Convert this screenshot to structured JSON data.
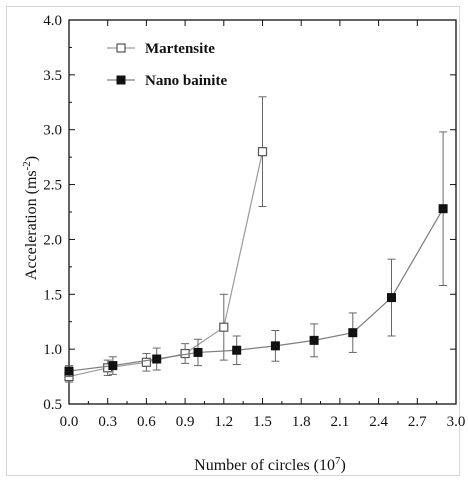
{
  "chart_data": {
    "type": "line",
    "title": "",
    "xlabel": "Number of circles (10",
    "xlabel_sup": "7",
    "xlabel_end": ")",
    "ylabel": "Acceleration (ms",
    "ylabel_sup": "-2",
    "ylabel_end": ")",
    "xlim": [
      0.0,
      3.0
    ],
    "ylim": [
      0.5,
      4.0
    ],
    "xticks": [
      "0.0",
      "0.3",
      "0.6",
      "0.9",
      "1.2",
      "1.5",
      "1.8",
      "2.1",
      "2.4",
      "2.7",
      "3.0"
    ],
    "yticks": [
      "0.5",
      "1.0",
      "1.5",
      "2.0",
      "2.5",
      "3.0",
      "3.5",
      "4.0"
    ],
    "grid": false,
    "legend_position": "top-left",
    "series": [
      {
        "name": "Martensite",
        "marker": "open-square",
        "color": "#9a9a9a",
        "x": [
          0.0,
          0.3,
          0.6,
          0.9,
          1.2,
          1.5
        ],
        "y": [
          0.75,
          0.83,
          0.88,
          0.96,
          1.2,
          2.8
        ],
        "err": [
          0.05,
          0.07,
          0.08,
          0.09,
          0.3,
          0.5
        ]
      },
      {
        "name": "Nano bainite",
        "marker": "filled-square",
        "color": "#7d7d7d",
        "x": [
          0.0,
          0.34,
          0.68,
          1.0,
          1.3,
          1.6,
          1.9,
          2.2,
          2.5,
          2.9
        ],
        "y": [
          0.8,
          0.85,
          0.91,
          0.97,
          0.99,
          1.03,
          1.08,
          1.15,
          1.47,
          2.28
        ],
        "err": [
          0.05,
          0.08,
          0.1,
          0.12,
          0.13,
          0.14,
          0.15,
          0.18,
          0.35,
          0.7
        ]
      }
    ]
  }
}
